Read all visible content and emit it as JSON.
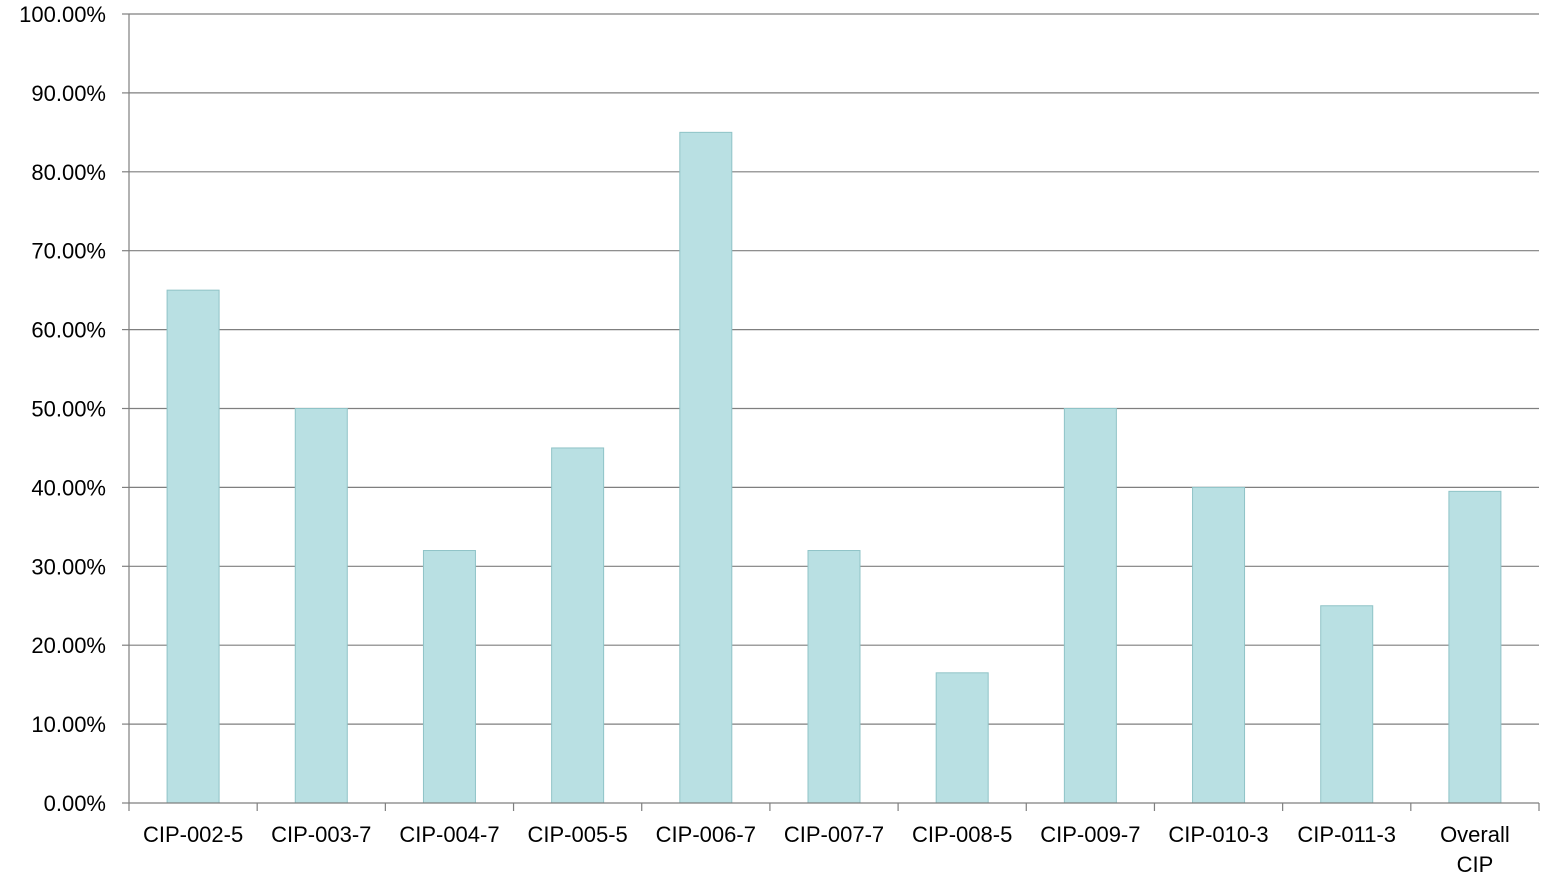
{
  "chart_data": {
    "type": "bar",
    "categories": [
      "CIP-002-5",
      "CIP-003-7",
      "CIP-004-7",
      "CIP-005-5",
      "CIP-006-7",
      "CIP-007-7",
      "CIP-008-5",
      "CIP-009-7",
      "CIP-010-3",
      "CIP-011-3",
      "Overall CIP"
    ],
    "category_lines": [
      [
        "CIP-002-5"
      ],
      [
        "CIP-003-7"
      ],
      [
        "CIP-004-7"
      ],
      [
        "CIP-005-5"
      ],
      [
        "CIP-006-7"
      ],
      [
        "CIP-007-7"
      ],
      [
        "CIP-008-5"
      ],
      [
        "CIP-009-7"
      ],
      [
        "CIP-010-3"
      ],
      [
        "CIP-011-3"
      ],
      [
        "Overall",
        "CIP"
      ]
    ],
    "values": [
      65.0,
      50.0,
      32.0,
      45.0,
      85.0,
      32.0,
      16.5,
      50.0,
      40.0,
      25.0,
      39.5
    ],
    "yticks": [
      "0.00%",
      "10.00%",
      "20.00%",
      "30.00%",
      "40.00%",
      "50.00%",
      "60.00%",
      "70.00%",
      "80.00%",
      "90.00%",
      "100.00%"
    ],
    "ylim": [
      0,
      100
    ],
    "title": "",
    "xlabel": "",
    "ylabel": "",
    "grid": true,
    "legend": "none",
    "colors": {
      "bar_fill": "#b9e0e3",
      "bar_stroke": "#8fc3c7",
      "gridline": "#7f7f7f",
      "axis": "#7f7f7f"
    }
  }
}
